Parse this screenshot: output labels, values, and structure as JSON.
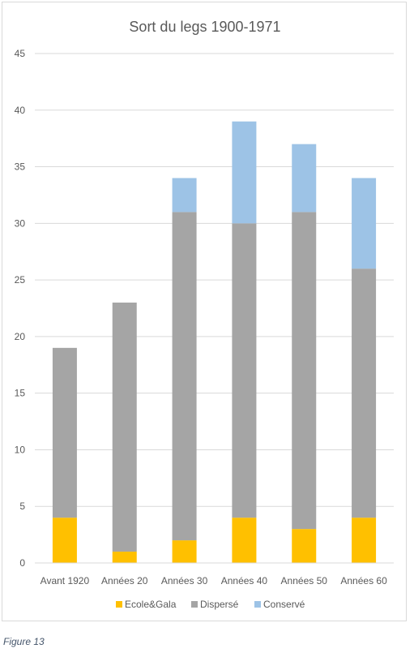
{
  "caption": "Figure 13",
  "colors": {
    "Ecole&Gala": "#ffc000",
    "Dispersé": "#a5a5a5",
    "Conservé": "#9dc3e6",
    "grid": "#d9d9d9",
    "text": "#404040"
  },
  "chart_data": {
    "type": "bar",
    "stacked": true,
    "title": "Sort du legs 1900-1971",
    "xlabel": "",
    "ylabel": "",
    "ylim": [
      0,
      45
    ],
    "yticks": [
      0,
      5,
      10,
      15,
      20,
      25,
      30,
      35,
      40,
      45
    ],
    "grid": true,
    "legend_position": "bottom",
    "categories": [
      "Avant 1920",
      "Années 20",
      "Années 30",
      "Années 40",
      "Années 50",
      "Années 60"
    ],
    "series": [
      {
        "name": "Ecole&Gala",
        "values": [
          4,
          1,
          2,
          4,
          3,
          4
        ]
      },
      {
        "name": "Dispersé",
        "values": [
          15,
          22,
          29,
          26,
          28,
          22
        ]
      },
      {
        "name": "Conservé",
        "values": [
          0,
          0,
          3,
          9,
          6,
          8
        ]
      }
    ]
  }
}
